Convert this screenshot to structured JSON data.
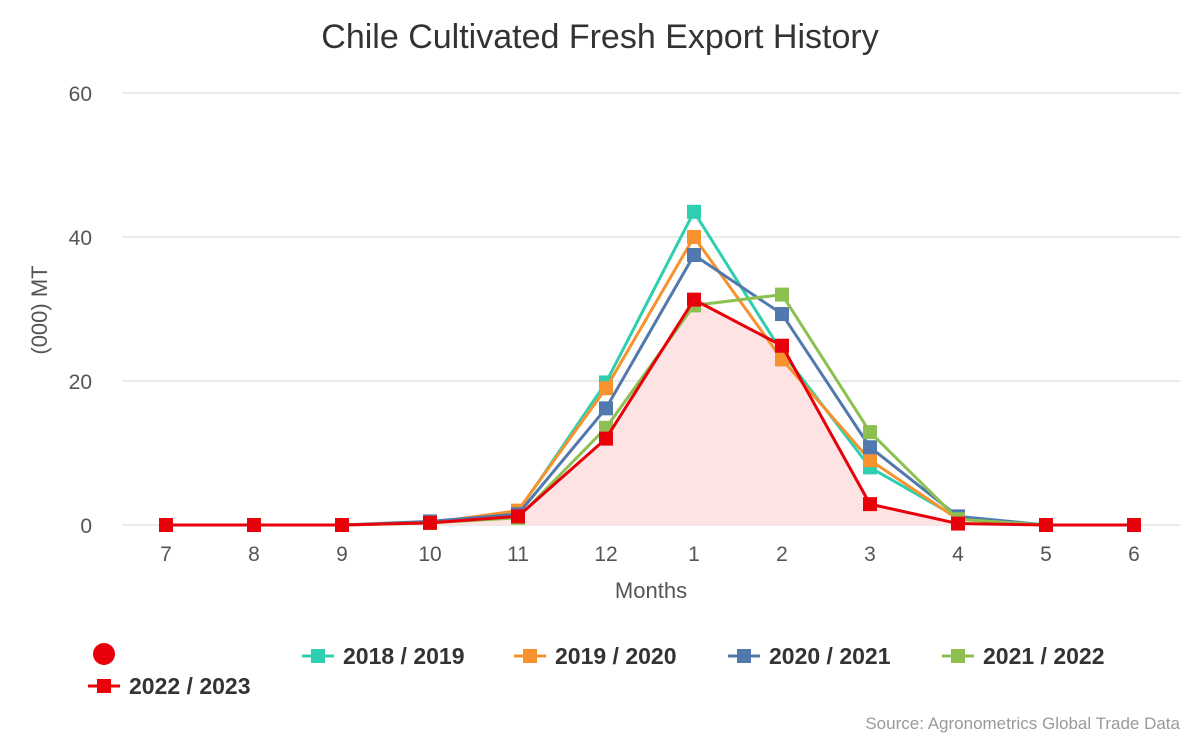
{
  "chart_data": {
    "type": "line",
    "title": "Chile Cultivated Fresh Export History",
    "xlabel": "Months",
    "ylabel": "(000) MT",
    "ylim": [
      0,
      60
    ],
    "yticks": [
      0,
      20,
      40,
      60
    ],
    "grid": true,
    "legend_position": "bottom",
    "categories": [
      "7",
      "8",
      "9",
      "10",
      "11",
      "12",
      "1",
      "2",
      "3",
      "4",
      "5",
      "6"
    ],
    "series": [
      {
        "name": "2018 / 2019",
        "color": "#2ecfb0",
        "values": [
          0,
          0,
          0,
          0.3,
          1.8,
          19.8,
          43.5,
          24.0,
          8.0,
          1.0,
          0,
          0
        ]
      },
      {
        "name": "2019 / 2020",
        "color": "#f7922e",
        "values": [
          0,
          0,
          0,
          0.3,
          2.0,
          19.0,
          40.0,
          23.0,
          9.0,
          0.8,
          0,
          0
        ]
      },
      {
        "name": "2020 / 2021",
        "color": "#5279ad",
        "values": [
          0,
          0,
          0,
          0.5,
          1.5,
          16.2,
          37.5,
          29.3,
          10.8,
          1.2,
          0,
          0
        ]
      },
      {
        "name": "2021 / 2022",
        "color": "#8cc152",
        "values": [
          0,
          0,
          0,
          0.3,
          1.0,
          13.5,
          30.5,
          32.0,
          12.9,
          0.8,
          0,
          0
        ]
      },
      {
        "name": "2022 / 2023",
        "color": "#e8000b",
        "fill": "#fde3e3",
        "values": [
          0,
          0,
          0,
          0.3,
          1.2,
          12.0,
          31.3,
          24.9,
          2.9,
          0.2,
          0,
          0
        ]
      }
    ],
    "legend_extra_marker_color": "#e8000b",
    "source": "Source: Agronometrics Global Trade Data"
  }
}
